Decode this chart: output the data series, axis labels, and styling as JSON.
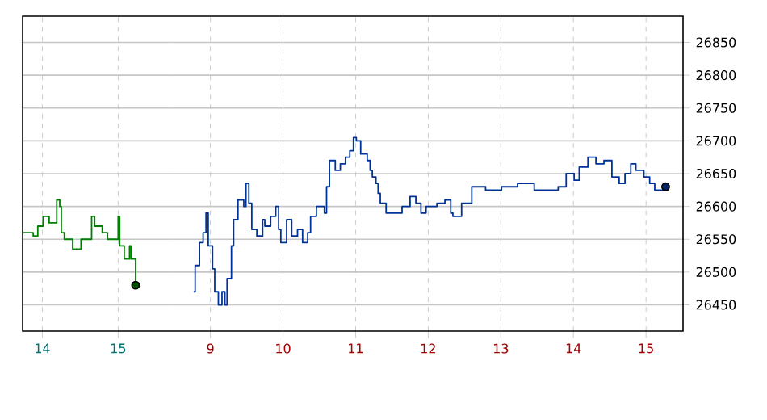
{
  "chart_data": [
    {
      "type": "step",
      "xlim": [
        13.74,
        15.68
      ],
      "ylim": [
        26410,
        26890
      ],
      "xticks": [
        14,
        15
      ],
      "yticks": [
        26450,
        26500,
        26550,
        26600,
        26650,
        26700,
        26750,
        26800,
        26850
      ],
      "tick_labels": "x",
      "grid": true,
      "series": [
        {
          "type": "scatter",
          "color": "#005000",
          "marker": "circle",
          "x": [
            15.23
          ],
          "values": [
            26480
          ]
        },
        {
          "color": "#008000",
          "x": [
            13.75,
            13.88,
            13.94,
            14.01,
            14.09,
            14.19,
            14.23,
            14.25,
            14.29,
            14.4,
            14.51,
            14.65,
            14.69,
            14.79,
            14.86,
            15.0,
            15.02,
            15.08,
            15.15,
            15.17,
            15.23
          ],
          "values": [
            26560,
            26555,
            26570,
            26585,
            26575,
            26610,
            26600,
            26560,
            26550,
            26535,
            26550,
            26585,
            26570,
            26560,
            26550,
            26585,
            26540,
            26520,
            26540,
            26520,
            26480
          ]
        }
      ]
    },
    {
      "type": "step",
      "xlim": [
        8.44,
        15.51
      ],
      "ylim": [
        26410,
        26890
      ],
      "xticks": [
        9,
        10,
        11,
        12,
        13,
        14,
        15
      ],
      "yticks": [
        26450,
        26500,
        26550,
        26600,
        26650,
        26700,
        26750,
        26800,
        26850
      ],
      "grid": true,
      "series": [
        {
          "type": "scatter",
          "color": "#002266",
          "marker": "circle",
          "x": [
            15.27
          ],
          "values": [
            26630
          ]
        },
        {
          "color": "#003399",
          "x": [
            8.77,
            8.79,
            8.85,
            8.9,
            8.94,
            8.97,
            9.03,
            9.06,
            9.11,
            9.16,
            9.2,
            9.23,
            9.29,
            9.32,
            9.38,
            9.46,
            9.49,
            9.53,
            9.57,
            9.64,
            9.72,
            9.75,
            9.83,
            9.9,
            9.94,
            9.97,
            10.05,
            10.12,
            10.2,
            10.27,
            10.34,
            10.38,
            10.46,
            10.57,
            10.6,
            10.64,
            10.72,
            10.79,
            10.86,
            10.92,
            10.97,
            11.01,
            11.07,
            11.16,
            11.2,
            11.23,
            11.28,
            11.31,
            11.34,
            11.42,
            11.53,
            11.6,
            11.64,
            11.75,
            11.83,
            11.9,
            11.97,
            12.12,
            12.23,
            12.31,
            12.34,
            12.46,
            12.6,
            12.79,
            13.01,
            13.23,
            13.46,
            13.68,
            13.79,
            13.9,
            14.01,
            14.08,
            14.2,
            14.31,
            14.42,
            14.53,
            14.63,
            14.71,
            14.79,
            14.86,
            14.97,
            15.05,
            15.12,
            15.27
          ],
          "values": [
            26470,
            26510,
            26545,
            26560,
            26590,
            26540,
            26505,
            26470,
            26450,
            26470,
            26450,
            26490,
            26540,
            26580,
            26610,
            26600,
            26635,
            26605,
            26565,
            26555,
            26580,
            26570,
            26585,
            26600,
            26565,
            26545,
            26580,
            26555,
            26565,
            26545,
            26560,
            26585,
            26600,
            26590,
            26630,
            26670,
            26655,
            26665,
            26675,
            26685,
            26705,
            26700,
            26680,
            26670,
            26655,
            26645,
            26635,
            26620,
            26605,
            26590,
            26590,
            26590,
            26600,
            26615,
            26605,
            26590,
            26600,
            26605,
            26610,
            26590,
            26585,
            26605,
            26630,
            26625,
            26630,
            26635,
            26625,
            26625,
            26630,
            26650,
            26640,
            26660,
            26675,
            26665,
            26670,
            26645,
            26635,
            26650,
            26665,
            26655,
            26645,
            26635,
            26625,
            26630
          ]
        }
      ]
    }
  ]
}
